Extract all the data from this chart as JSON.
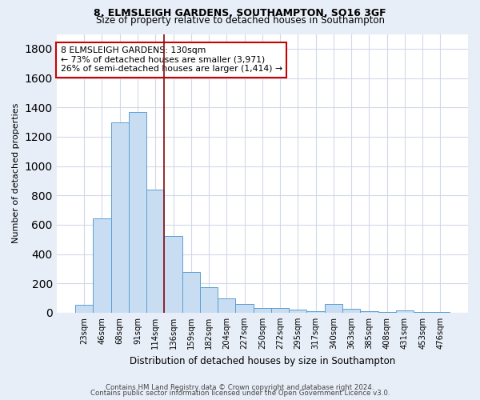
{
  "title1": "8, ELMSLEIGH GARDENS, SOUTHAMPTON, SO16 3GF",
  "title2": "Size of property relative to detached houses in Southampton",
  "xlabel": "Distribution of detached houses by size in Southampton",
  "ylabel": "Number of detached properties",
  "footer1": "Contains HM Land Registry data © Crown copyright and database right 2024.",
  "footer2": "Contains public sector information licensed under the Open Government Licence v3.0.",
  "bar_labels": [
    "23sqm",
    "46sqm",
    "68sqm",
    "91sqm",
    "114sqm",
    "136sqm",
    "159sqm",
    "182sqm",
    "204sqm",
    "227sqm",
    "250sqm",
    "272sqm",
    "295sqm",
    "317sqm",
    "340sqm",
    "363sqm",
    "385sqm",
    "408sqm",
    "431sqm",
    "453sqm",
    "476sqm"
  ],
  "bar_values": [
    55,
    645,
    1300,
    1370,
    840,
    525,
    275,
    175,
    100,
    60,
    35,
    35,
    20,
    10,
    60,
    25,
    10,
    5,
    15,
    5,
    5
  ],
  "bar_color": "#c9ddf2",
  "bar_edgecolor": "#5a9fd4",
  "vline_x": 4.5,
  "vline_color": "#8b1a1a",
  "annotation_text": "8 ELMSLEIGH GARDENS: 130sqm\n← 73% of detached houses are smaller (3,971)\n26% of semi-detached houses are larger (1,414) →",
  "annotation_box_color": "#ffffff",
  "annotation_box_edgecolor": "#cc0000",
  "ylim": [
    0,
    1900
  ],
  "yticks": [
    0,
    200,
    400,
    600,
    800,
    1000,
    1200,
    1400,
    1600,
    1800
  ],
  "plot_bg_color": "#ffffff",
  "fig_bg_color": "#e8eef8",
  "grid_color": "#d0d8e8",
  "title1_fontsize": 9,
  "title2_fontsize": 8.5,
  "ylabel_fontsize": 8,
  "xlabel_fontsize": 8.5
}
